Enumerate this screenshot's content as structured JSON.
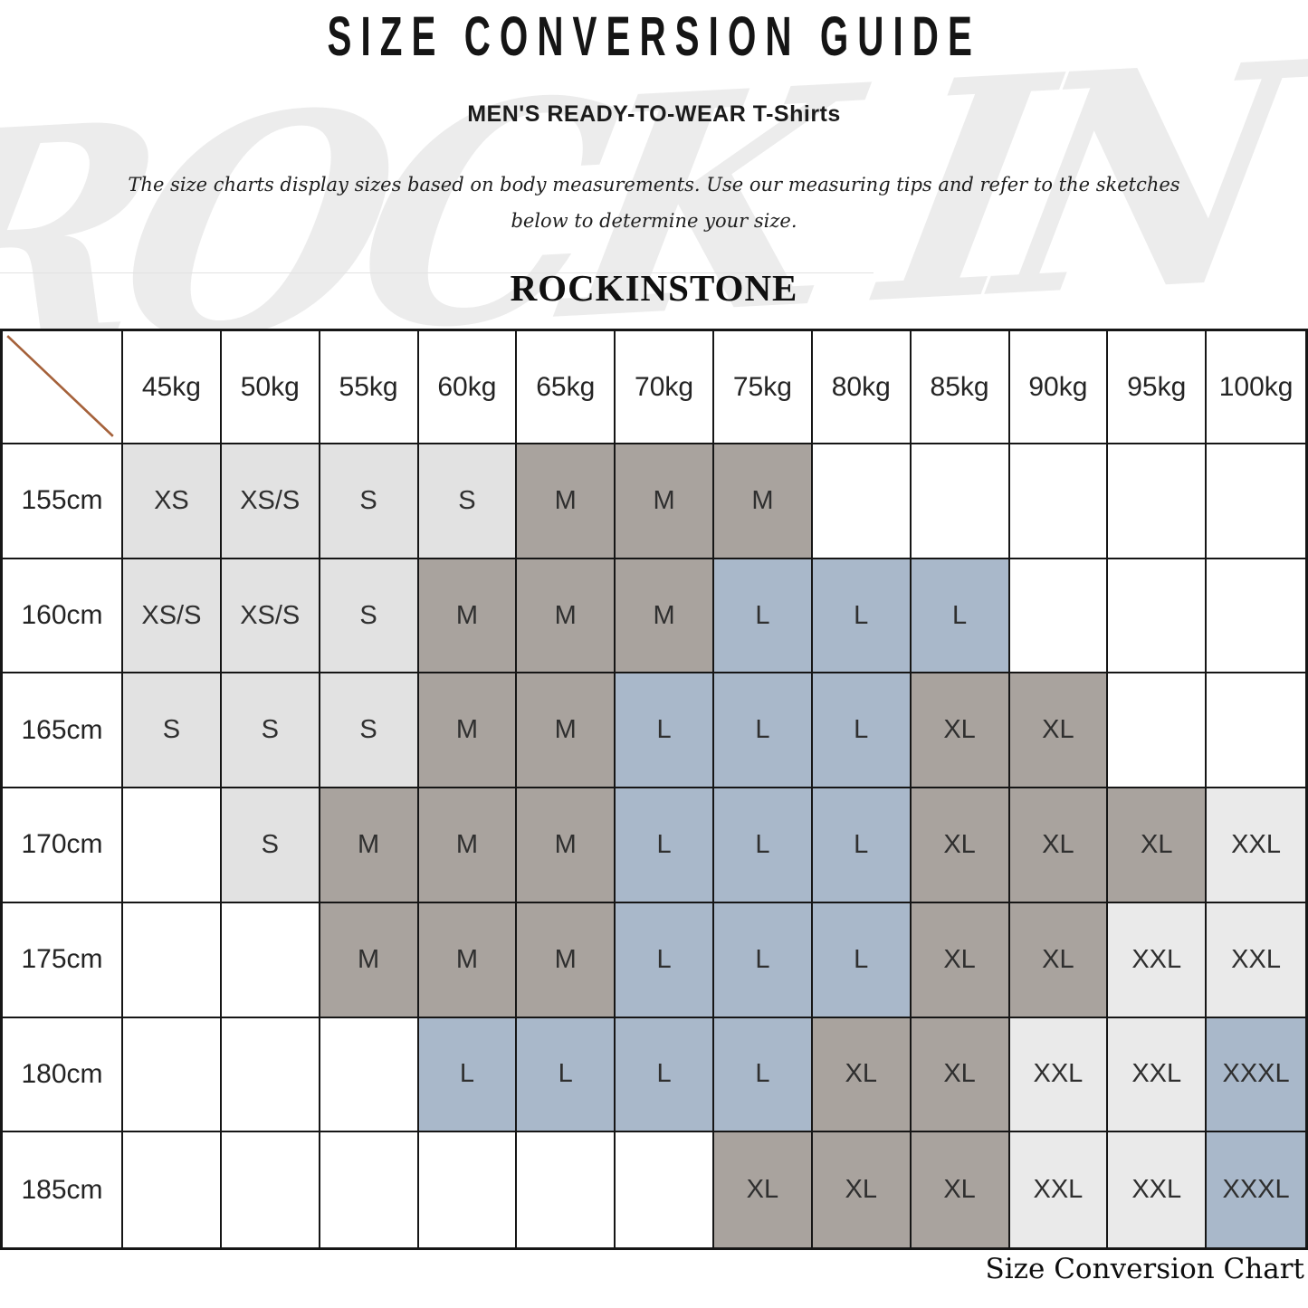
{
  "page": {
    "title": "SIZE CONVERSION GUIDE",
    "subtitle": "MEN'S READY-TO-WEAR T-Shirts",
    "description_line1": "The size charts display sizes based on body measurements. Use our measuring tips and refer to the sketches",
    "description_line2": "below to determine your size.",
    "brand": "ROCKINSTONE",
    "watermark": "ROCK IN STONE",
    "caption": "Size Conversion Chart"
  },
  "colors": {
    "fills": {
      "lg": "#e2e2e2",
      "xlg": "#eaeaea",
      "dg": "#a9a39e",
      "bl": "#a9b8ca"
    },
    "grid_line": "#161616",
    "diagonal": "#a5613a",
    "cell_text": "#2f2f2f"
  },
  "table": {
    "weights": [
      "45kg",
      "50kg",
      "55kg",
      "60kg",
      "65kg",
      "70kg",
      "75kg",
      "80kg",
      "85kg",
      "90kg",
      "95kg",
      "100kg"
    ],
    "rows": [
      {
        "height": "155cm",
        "cells": [
          {
            "v": "XS",
            "c": "lg"
          },
          {
            "v": "XS/S",
            "c": "lg"
          },
          {
            "v": "S",
            "c": "lg"
          },
          {
            "v": "S",
            "c": "lg"
          },
          {
            "v": "M",
            "c": "dg"
          },
          {
            "v": "M",
            "c": "dg"
          },
          {
            "v": "M",
            "c": "dg"
          },
          {
            "v": "",
            "c": ""
          },
          {
            "v": "",
            "c": ""
          },
          {
            "v": "",
            "c": ""
          },
          {
            "v": "",
            "c": ""
          },
          {
            "v": "",
            "c": ""
          }
        ]
      },
      {
        "height": "160cm",
        "cells": [
          {
            "v": "XS/S",
            "c": "lg"
          },
          {
            "v": "XS/S",
            "c": "lg"
          },
          {
            "v": "S",
            "c": "lg"
          },
          {
            "v": "M",
            "c": "dg"
          },
          {
            "v": "M",
            "c": "dg"
          },
          {
            "v": "M",
            "c": "dg"
          },
          {
            "v": "L",
            "c": "bl"
          },
          {
            "v": "L",
            "c": "bl"
          },
          {
            "v": "L",
            "c": "bl"
          },
          {
            "v": "",
            "c": ""
          },
          {
            "v": "",
            "c": ""
          },
          {
            "v": "",
            "c": ""
          }
        ]
      },
      {
        "height": "165cm",
        "cells": [
          {
            "v": "S",
            "c": "lg"
          },
          {
            "v": "S",
            "c": "lg"
          },
          {
            "v": "S",
            "c": "lg"
          },
          {
            "v": "M",
            "c": "dg"
          },
          {
            "v": "M",
            "c": "dg"
          },
          {
            "v": "L",
            "c": "bl"
          },
          {
            "v": "L",
            "c": "bl"
          },
          {
            "v": "L",
            "c": "bl"
          },
          {
            "v": "XL",
            "c": "dg"
          },
          {
            "v": "XL",
            "c": "dg"
          },
          {
            "v": "",
            "c": ""
          },
          {
            "v": "",
            "c": ""
          }
        ]
      },
      {
        "height": "170cm",
        "cells": [
          {
            "v": "",
            "c": ""
          },
          {
            "v": "S",
            "c": "lg"
          },
          {
            "v": "M",
            "c": "dg"
          },
          {
            "v": "M",
            "c": "dg"
          },
          {
            "v": "M",
            "c": "dg"
          },
          {
            "v": "L",
            "c": "bl"
          },
          {
            "v": "L",
            "c": "bl"
          },
          {
            "v": "L",
            "c": "bl"
          },
          {
            "v": "XL",
            "c": "dg"
          },
          {
            "v": "XL",
            "c": "dg"
          },
          {
            "v": "XL",
            "c": "dg"
          },
          {
            "v": "XXL",
            "c": "xlg"
          }
        ]
      },
      {
        "height": "175cm",
        "cells": [
          {
            "v": "",
            "c": ""
          },
          {
            "v": "",
            "c": ""
          },
          {
            "v": "M",
            "c": "dg"
          },
          {
            "v": "M",
            "c": "dg"
          },
          {
            "v": "M",
            "c": "dg"
          },
          {
            "v": "L",
            "c": "bl"
          },
          {
            "v": "L",
            "c": "bl"
          },
          {
            "v": "L",
            "c": "bl"
          },
          {
            "v": "XL",
            "c": "dg"
          },
          {
            "v": "XL",
            "c": "dg"
          },
          {
            "v": "XXL",
            "c": "xlg"
          },
          {
            "v": "XXL",
            "c": "xlg"
          }
        ]
      },
      {
        "height": "180cm",
        "cells": [
          {
            "v": "",
            "c": ""
          },
          {
            "v": "",
            "c": ""
          },
          {
            "v": "",
            "c": ""
          },
          {
            "v": "L",
            "c": "bl"
          },
          {
            "v": "L",
            "c": "bl"
          },
          {
            "v": "L",
            "c": "bl"
          },
          {
            "v": "L",
            "c": "bl"
          },
          {
            "v": "XL",
            "c": "dg"
          },
          {
            "v": "XL",
            "c": "dg"
          },
          {
            "v": "XXL",
            "c": "xlg"
          },
          {
            "v": "XXL",
            "c": "xlg"
          },
          {
            "v": "XXXL",
            "c": "bl"
          }
        ]
      },
      {
        "height": "185cm",
        "cells": [
          {
            "v": "",
            "c": ""
          },
          {
            "v": "",
            "c": ""
          },
          {
            "v": "",
            "c": ""
          },
          {
            "v": "",
            "c": ""
          },
          {
            "v": "",
            "c": ""
          },
          {
            "v": "",
            "c": ""
          },
          {
            "v": "XL",
            "c": "dg"
          },
          {
            "v": "XL",
            "c": "dg"
          },
          {
            "v": "XL",
            "c": "dg"
          },
          {
            "v": "XXL",
            "c": "xlg"
          },
          {
            "v": "XXL",
            "c": "xlg"
          },
          {
            "v": "XXXL",
            "c": "bl"
          }
        ]
      }
    ]
  }
}
